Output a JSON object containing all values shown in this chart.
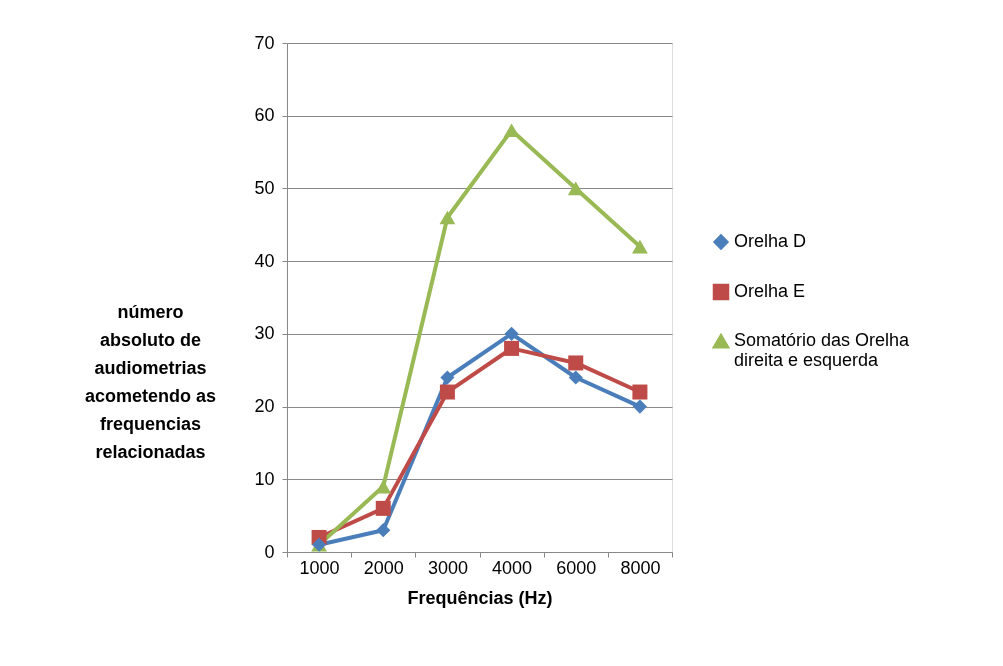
{
  "chart_data": {
    "type": "line",
    "xlabel": "Frequências (Hz)",
    "ylabel": "número absoluto de audiometrias acometendo as frequencias relacionadas",
    "categories": [
      "1000",
      "2000",
      "3000",
      "4000",
      "6000",
      "8000"
    ],
    "series": [
      {
        "name": "Orelha D",
        "color": "#4a7ebb",
        "marker": "diamond",
        "values": [
          1,
          3,
          24,
          30,
          24,
          20
        ]
      },
      {
        "name": "Orelha E",
        "color": "#be4b48",
        "marker": "square",
        "values": [
          2,
          6,
          22,
          28,
          26,
          22
        ]
      },
      {
        "name": "Somatório das Orelha direita e esquerda",
        "color": "#98b954",
        "marker": "triangle",
        "values": [
          1,
          9,
          46,
          58,
          50,
          42
        ]
      }
    ],
    "ylim": [
      0,
      70
    ],
    "yticks": [
      0,
      10,
      20,
      30,
      40,
      50,
      60,
      70
    ],
    "grid": "y",
    "legend": "right",
    "line_style": "solid"
  }
}
